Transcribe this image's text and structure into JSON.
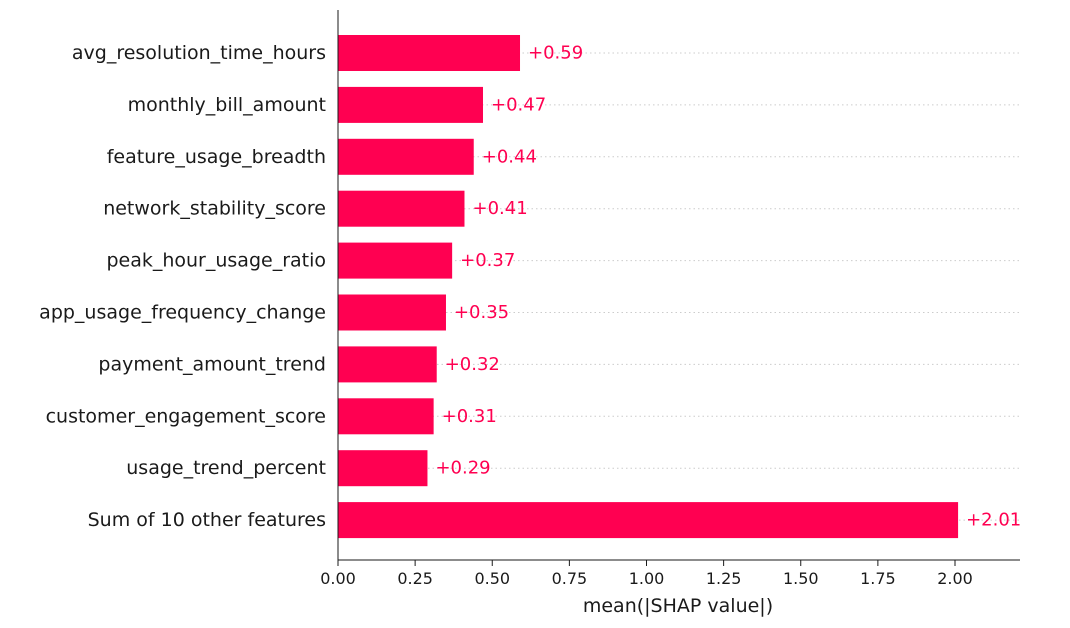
{
  "chart_data": {
    "type": "bar",
    "orientation": "horizontal",
    "categories": [
      "avg_resolution_time_hours",
      "monthly_bill_amount",
      "feature_usage_breadth",
      "network_stability_score",
      "peak_hour_usage_ratio",
      "app_usage_frequency_change",
      "payment_amount_trend",
      "customer_engagement_score",
      "usage_trend_percent",
      "Sum of 10 other features"
    ],
    "values": [
      0.59,
      0.47,
      0.44,
      0.41,
      0.37,
      0.35,
      0.32,
      0.31,
      0.29,
      2.01
    ],
    "value_labels": [
      "+0.59",
      "+0.47",
      "+0.44",
      "+0.41",
      "+0.37",
      "+0.35",
      "+0.32",
      "+0.31",
      "+0.29",
      "+2.01"
    ],
    "xlabel": "mean(|SHAP value|)",
    "ylabel": "",
    "title": "",
    "xlim": [
      0,
      2.2
    ],
    "xticks": [
      0.0,
      0.25,
      0.5,
      0.75,
      1.0,
      1.25,
      1.5,
      1.75,
      2.0
    ],
    "xtick_labels": [
      "0.00",
      "0.25",
      "0.50",
      "0.75",
      "1.00",
      "1.25",
      "1.50",
      "1.75",
      "2.00"
    ],
    "grid": "horizontal dotted per bar",
    "colors": {
      "bar": "#ff0051",
      "label": "#ff0051",
      "axis": "#1a1a1a",
      "grid": "#cccccc"
    }
  }
}
